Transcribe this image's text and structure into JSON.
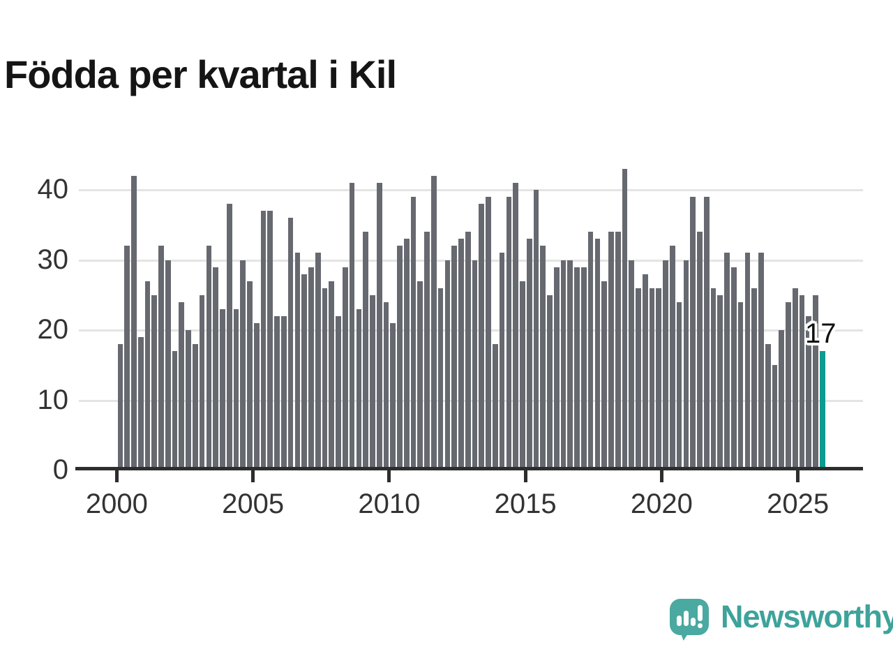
{
  "title": "Födda per kvartal i Kil",
  "annotation": {
    "text": "17"
  },
  "logo": {
    "text": "Newsworthy"
  },
  "colors": {
    "bar": "#66696f",
    "highlight": "#0d9b8f",
    "grid": "#e4e4e4",
    "axis": "#2d2d2d",
    "tick_text": "#333333",
    "title_text": "#151515",
    "logo_teal": "#4aa9a0",
    "logo_text_teal": "#3da39b"
  },
  "chart_data": {
    "type": "bar",
    "title": "Födda per kvartal i Kil",
    "frequency": "quarterly",
    "start": "2000-Q1",
    "end": "2025-Q4",
    "xlabel": "",
    "ylabel": "",
    "ylim": [
      0,
      44
    ],
    "grid": true,
    "y_ticks": [
      0,
      10,
      20,
      30,
      40
    ],
    "x_tick_years": [
      2000,
      2005,
      2010,
      2015,
      2020,
      2025
    ],
    "x_tick_labels": [
      "2000",
      "2005",
      "2010",
      "2015",
      "2020",
      "2025"
    ],
    "series": [
      {
        "name": "Födda per kvartal",
        "values": [
          18,
          32,
          42,
          19,
          27,
          25,
          32,
          30,
          17,
          24,
          20,
          18,
          25,
          32,
          29,
          23,
          38,
          23,
          30,
          27,
          21,
          37,
          37,
          22,
          22,
          36,
          31,
          28,
          29,
          31,
          26,
          27,
          22,
          29,
          41,
          23,
          34,
          25,
          41,
          24,
          21,
          32,
          33,
          39,
          27,
          34,
          42,
          26,
          30,
          32,
          33,
          34,
          30,
          38,
          39,
          18,
          31,
          39,
          41,
          27,
          33,
          40,
          32,
          25,
          29,
          30,
          30,
          29,
          29,
          34,
          33,
          27,
          34,
          34,
          43,
          30,
          26,
          28,
          26,
          26,
          30,
          32,
          24,
          30,
          39,
          34,
          39,
          26,
          25,
          31,
          29,
          24,
          31,
          26,
          31,
          18,
          15,
          20,
          24,
          26,
          25,
          22,
          25,
          17
        ]
      }
    ],
    "highlight_last": {
      "index": 103,
      "period": "2025-Q4",
      "value": 17,
      "label": "17"
    },
    "legend": "none"
  }
}
